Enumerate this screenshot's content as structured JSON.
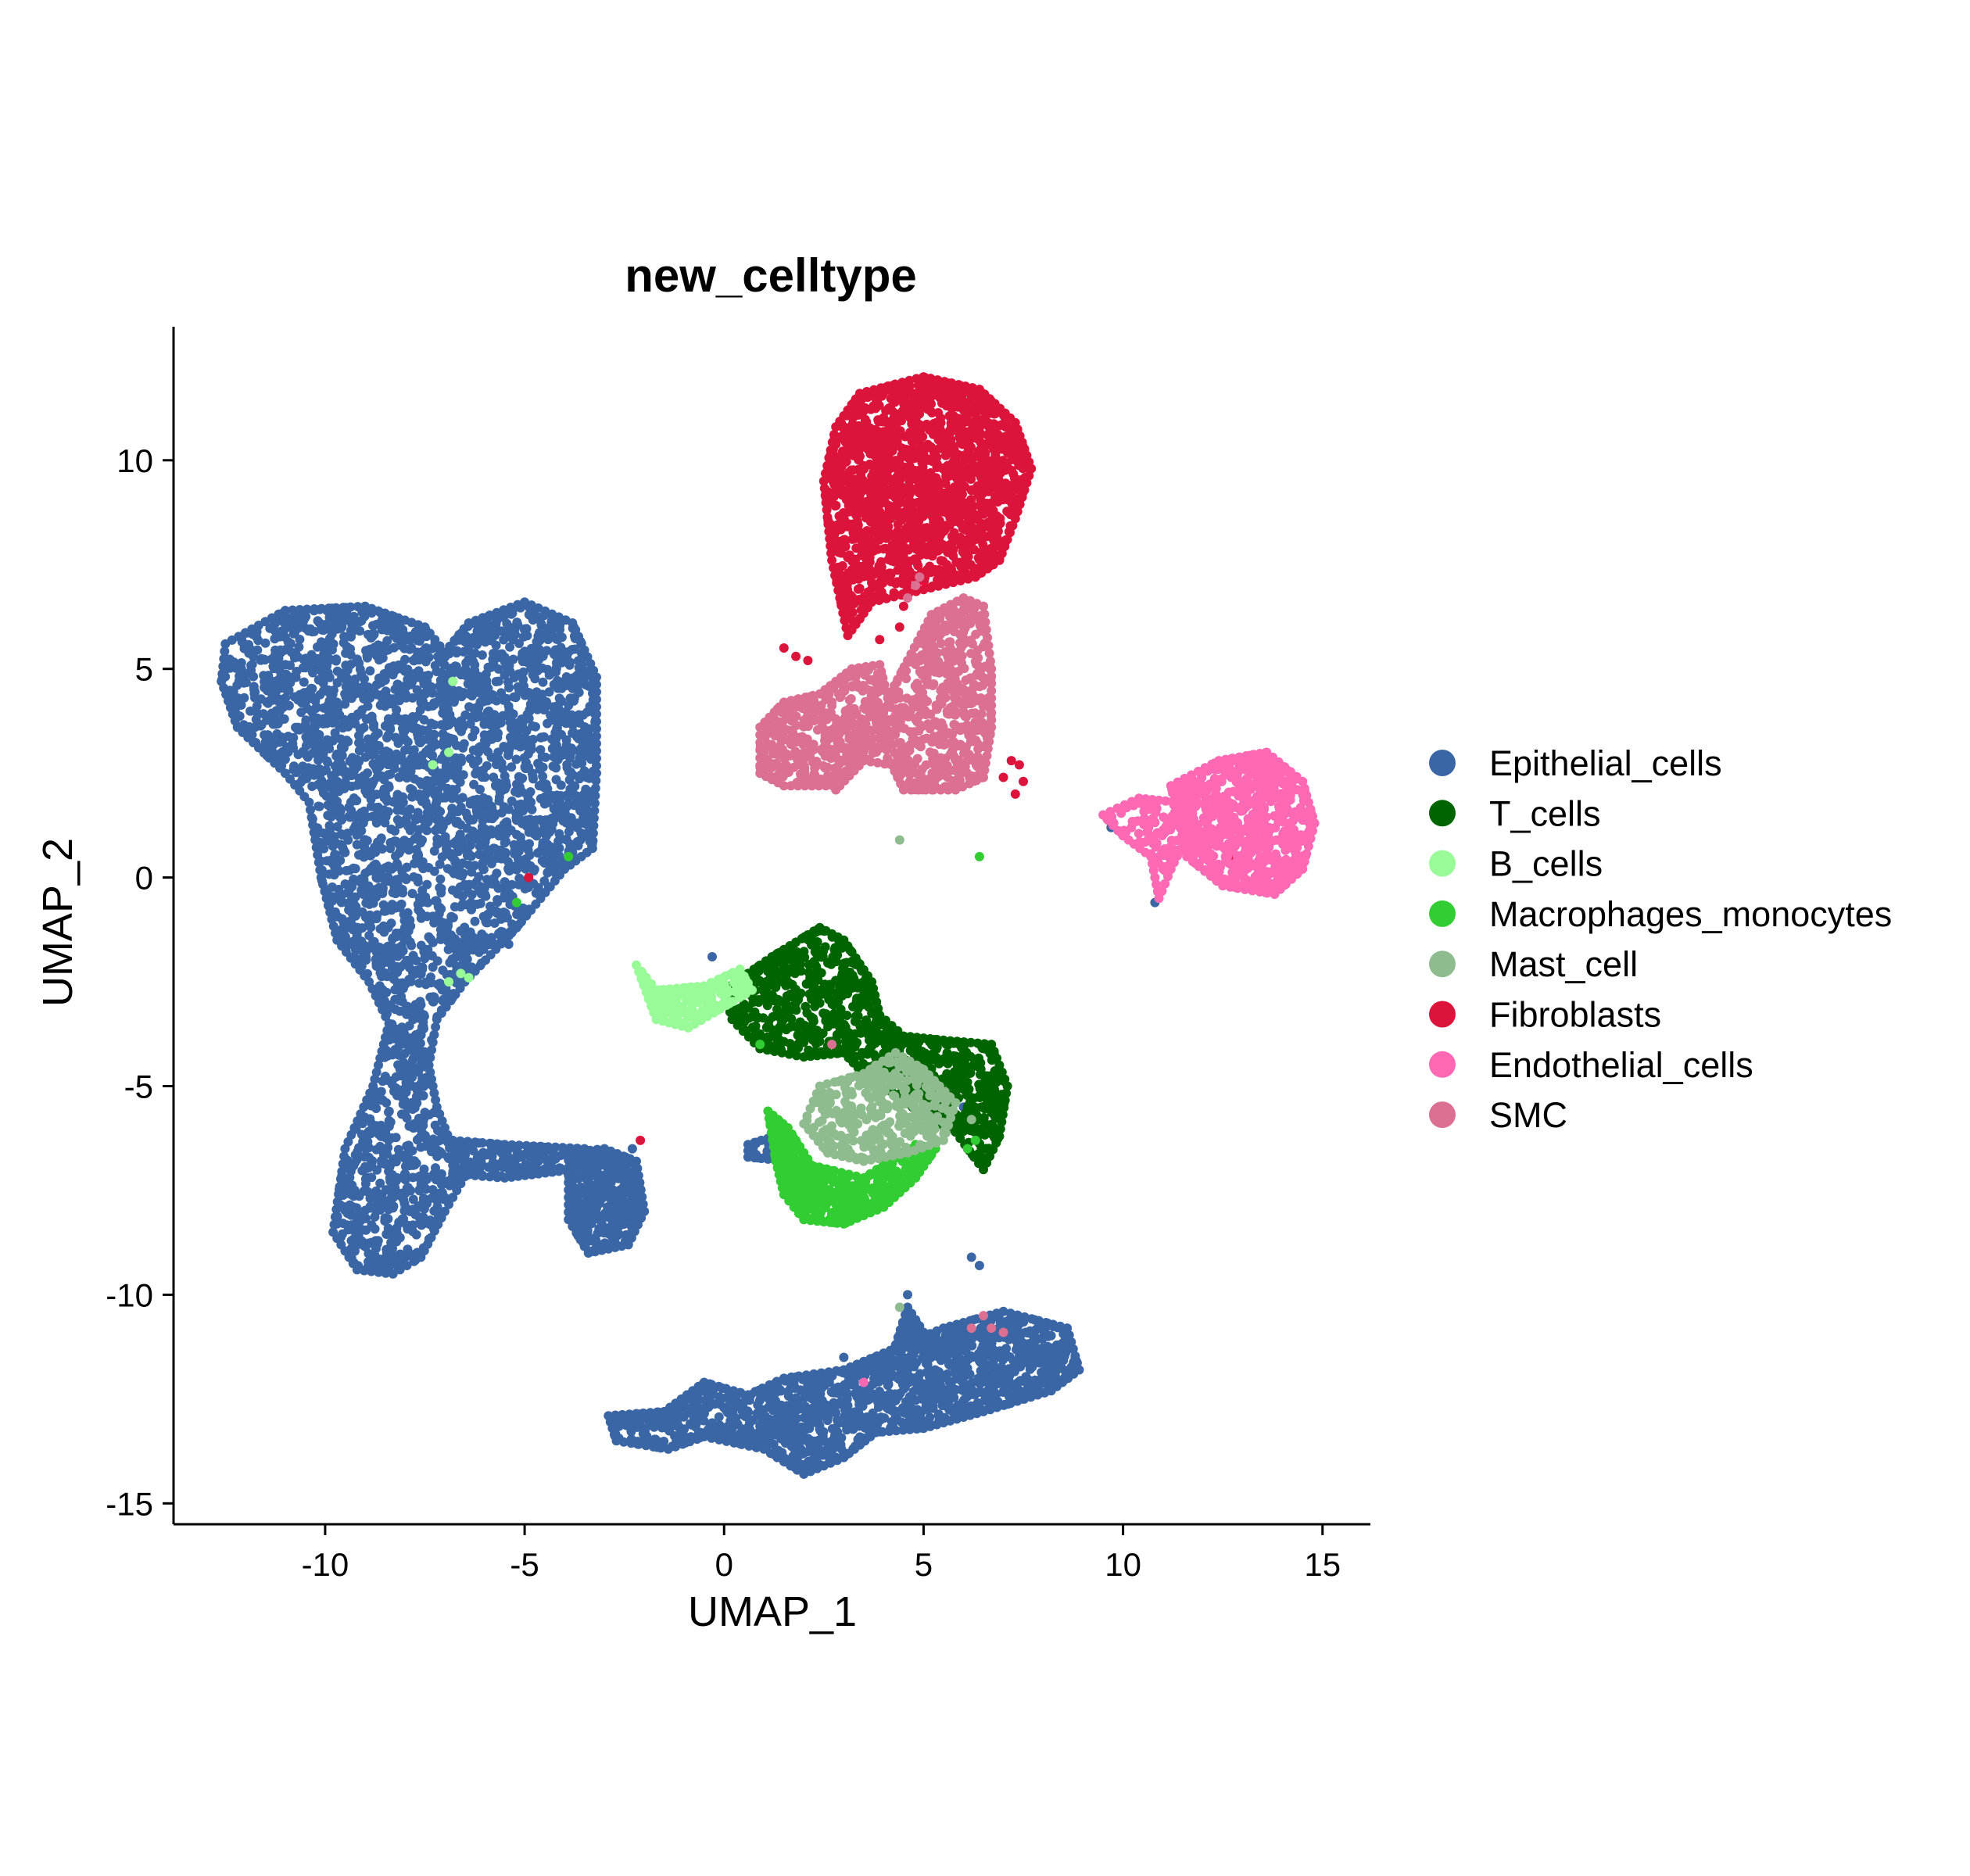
{
  "chart_data": {
    "type": "scatter",
    "title": "new_celltype",
    "xlabel": "UMAP_1",
    "ylabel": "UMAP_2",
    "xlim": [
      -13.8,
      16.2
    ],
    "ylim": [
      -15.5,
      13.2
    ],
    "xticks": [
      -10,
      -5,
      0,
      5,
      10,
      15
    ],
    "yticks": [
      -15,
      -10,
      -5,
      0,
      5,
      10
    ],
    "xtick_labels": [
      "-10",
      "-5",
      "0",
      "5",
      "10",
      "15"
    ],
    "ytick_labels": [
      "-15",
      "-10",
      "-5",
      "0",
      "5",
      "10"
    ],
    "grid": false,
    "legend_position": "right",
    "series": [
      {
        "name": "Epithelial_cells",
        "color": "#3A66A5",
        "regions": [
          {
            "poly": [
              [
                -12.5,
                5.6
              ],
              [
                -11,
                6.4
              ],
              [
                -9,
                6.5
              ],
              [
                -7.5,
                6.0
              ],
              [
                -7,
                5.4
              ],
              [
                -6.4,
                6.1
              ],
              [
                -5,
                6.6
              ],
              [
                -3.8,
                6.1
              ],
              [
                -3.2,
                4.8
              ],
              [
                -3.2,
                2.5
              ],
              [
                -3.3,
                0.7
              ],
              [
                -4,
                0.2
              ],
              [
                -5.2,
                -1.2
              ],
              [
                -6.5,
                -2.5
              ],
              [
                -7.2,
                -3.4
              ],
              [
                -7.4,
                -4.5
              ],
              [
                -7.2,
                -5.5
              ],
              [
                -6.8,
                -6.5
              ],
              [
                -6.4,
                -7.0
              ],
              [
                -7.0,
                -8.0
              ],
              [
                -7.6,
                -9.1
              ],
              [
                -8.3,
                -9.5
              ],
              [
                -9.2,
                -9.4
              ],
              [
                -9.8,
                -8.5
              ],
              [
                -9.5,
                -6.5
              ],
              [
                -8.8,
                -5.0
              ],
              [
                -8.4,
                -3.5
              ],
              [
                -8.9,
                -2.5
              ],
              [
                -9.7,
                -1.5
              ],
              [
                -10.1,
                0.0
              ],
              [
                -10.4,
                1.8
              ],
              [
                -11.0,
                2.5
              ],
              [
                -12.2,
                3.6
              ],
              [
                -12.6,
                4.7
              ]
            ],
            "n": 3200
          },
          {
            "poly": [
              [
                -6.8,
                -6.3
              ],
              [
                -5.5,
                -6.4
              ],
              [
                -3.5,
                -6.5
              ],
              [
                -3.8,
                -7.0
              ],
              [
                -5.5,
                -7.2
              ],
              [
                -6.8,
                -7.1
              ]
            ],
            "n": 150
          },
          {
            "poly": [
              [
                -3.9,
                -6.6
              ],
              [
                -3.0,
                -6.5
              ],
              [
                -2.2,
                -6.8
              ],
              [
                -2.0,
                -8.0
              ],
              [
                -2.4,
                -8.8
              ],
              [
                -3.4,
                -9.0
              ],
              [
                -3.9,
                -8.2
              ]
            ],
            "n": 350
          },
          {
            "poly": [
              [
                -1.5,
                -12.8
              ],
              [
                -0.5,
                -12.1
              ],
              [
                0.6,
                -12.4
              ],
              [
                1.5,
                -12.0
              ],
              [
                3.0,
                -11.8
              ],
              [
                4.5,
                -11.2
              ],
              [
                5.5,
                -10.8
              ],
              [
                7.0,
                -10.4
              ],
              [
                8.6,
                -10.8
              ],
              [
                8.9,
                -11.8
              ],
              [
                8.2,
                -12.3
              ],
              [
                6.5,
                -12.8
              ],
              [
                5.0,
                -13.2
              ],
              [
                3.8,
                -13.3
              ],
              [
                3.0,
                -13.9
              ],
              [
                2.0,
                -14.3
              ],
              [
                1.0,
                -13.7
              ],
              [
                -0.5,
                -13.4
              ],
              [
                -1.4,
                -13.7
              ],
              [
                -2.7,
                -13.5
              ],
              [
                -2.9,
                -12.9
              ]
            ],
            "n": 1400
          },
          {
            "poly": [
              [
                4.3,
                -11.2
              ],
              [
                4.6,
                -10.3
              ],
              [
                5.0,
                -10.9
              ],
              [
                5.3,
                -11.4
              ]
            ],
            "n": 50
          },
          {
            "poly": [
              [
                0.6,
                -6.4
              ],
              [
                1.6,
                -6.1
              ],
              [
                1.6,
                -6.8
              ],
              [
                0.6,
                -6.7
              ]
            ],
            "n": 25
          }
        ],
        "extras": [
          [
            -5.4,
            5.9
          ],
          [
            -6.8,
            4.7
          ],
          [
            -6.4,
            0.3
          ],
          [
            -5.4,
            -1.6
          ],
          [
            -2.3,
            -6.5
          ],
          [
            -0.3,
            -1.9
          ],
          [
            6.0,
            -5.5
          ],
          [
            3.0,
            -11.5
          ],
          [
            10.8,
            -0.6
          ],
          [
            9.7,
            1.2
          ],
          [
            7.8,
            -11.6
          ],
          [
            6.2,
            -9.1
          ],
          [
            6.4,
            -9.3
          ],
          [
            4.6,
            -10.0
          ]
        ]
      },
      {
        "name": "T_cells",
        "color": "#006400",
        "regions": [
          {
            "poly": [
              [
                0.0,
                -2.7
              ],
              [
                1.2,
                -1.9
              ],
              [
                2.4,
                -1.2
              ],
              [
                3.0,
                -1.5
              ],
              [
                3.7,
                -2.5
              ],
              [
                3.9,
                -3.3
              ],
              [
                4.5,
                -3.8
              ],
              [
                5.5,
                -3.9
              ],
              [
                6.7,
                -4.0
              ],
              [
                7.1,
                -5.0
              ],
              [
                6.9,
                -6.2
              ],
              [
                6.5,
                -7.0
              ],
              [
                5.8,
                -6.1
              ],
              [
                5.0,
                -5.7
              ],
              [
                4.3,
                -5.2
              ],
              [
                3.6,
                -4.8
              ],
              [
                3.0,
                -4.2
              ],
              [
                2.0,
                -4.3
              ],
              [
                0.9,
                -4.1
              ],
              [
                0.2,
                -3.4
              ]
            ],
            "n": 900
          }
        ],
        "extras": [
          [
            1.0,
            -3.9
          ],
          [
            1.7,
            -4.1
          ]
        ]
      },
      {
        "name": "B_cells",
        "color": "#98FB98",
        "regions": [
          {
            "poly": [
              [
                -2.2,
                -2.1
              ],
              [
                -1.7,
                -2.7
              ],
              [
                -0.5,
                -2.6
              ],
              [
                0.4,
                -2.2
              ],
              [
                0.7,
                -2.7
              ],
              [
                -0.9,
                -3.6
              ],
              [
                -1.7,
                -3.4
              ]
            ],
            "n": 180
          }
        ],
        "extras": [
          [
            -6.8,
            4.7
          ],
          [
            -6.9,
            3.0
          ],
          [
            -7.3,
            2.7
          ],
          [
            -6.6,
            -2.3
          ],
          [
            -6.4,
            -2.4
          ],
          [
            -6.9,
            -2.5
          ]
        ]
      },
      {
        "name": "Macrophages_monocytes",
        "color": "#32CD32",
        "regions": [
          {
            "poly": [
              [
                1.6,
                -6.0
              ],
              [
                2.2,
                -6.9
              ],
              [
                3.5,
                -7.2
              ],
              [
                4.8,
                -6.4
              ],
              [
                5.3,
                -6.5
              ],
              [
                4.8,
                -7.2
              ],
              [
                4.0,
                -7.9
              ],
              [
                3.0,
                -8.3
              ],
              [
                2.0,
                -8.2
              ],
              [
                1.5,
                -7.6
              ],
              [
                1.3,
                -6.8
              ],
              [
                1.1,
                -5.6
              ]
            ],
            "n": 480
          }
        ],
        "extras": [
          [
            6.4,
            0.5
          ],
          [
            0.9,
            -4.0
          ],
          [
            6.1,
            -6.5
          ],
          [
            6.3,
            -6.3
          ],
          [
            -3.9,
            0.5
          ],
          [
            -5.2,
            -0.6
          ]
        ]
      },
      {
        "name": "Mast_cell",
        "color": "#8FBC8F",
        "regions": [
          {
            "poly": [
              [
                2.4,
                -5.0
              ],
              [
                3.5,
                -4.7
              ],
              [
                4.3,
                -4.2
              ],
              [
                5.0,
                -4.6
              ],
              [
                5.8,
                -5.4
              ],
              [
                5.5,
                -6.3
              ],
              [
                4.6,
                -6.6
              ],
              [
                3.5,
                -6.8
              ],
              [
                2.6,
                -6.6
              ],
              [
                2.0,
                -5.9
              ]
            ],
            "n": 300
          }
        ],
        "extras": [
          [
            4.4,
            0.9
          ],
          [
            4.4,
            -10.3
          ],
          [
            3.8,
            -4.5
          ],
          [
            6.2,
            -5.8
          ]
        ]
      },
      {
        "name": "Fibroblasts",
        "color": "#DC143C",
        "regions": [
          {
            "poly": [
              [
                2.8,
                10.8
              ],
              [
                3.4,
                11.6
              ],
              [
                5.0,
                12.0
              ],
              [
                6.4,
                11.7
              ],
              [
                7.3,
                10.9
              ],
              [
                7.7,
                9.8
              ],
              [
                7.3,
                8.6
              ],
              [
                6.9,
                7.6
              ],
              [
                6.3,
                7.2
              ],
              [
                5.0,
                6.9
              ],
              [
                3.7,
                6.6
              ],
              [
                3.1,
                5.8
              ],
              [
                2.7,
                7.6
              ],
              [
                2.5,
                9.5
              ]
            ],
            "n": 1600
          }
        ],
        "extras": [
          [
            1.8,
            5.3
          ],
          [
            1.5,
            5.5
          ],
          [
            2.1,
            5.2
          ],
          [
            3.9,
            5.7
          ],
          [
            4.4,
            6.0
          ],
          [
            7.2,
            2.8
          ],
          [
            7.4,
            2.7
          ],
          [
            7.0,
            2.4
          ],
          [
            7.3,
            2.0
          ],
          [
            7.5,
            2.3
          ],
          [
            4.5,
            6.5
          ],
          [
            -4.9,
            0.0
          ],
          [
            -2.1,
            -6.3
          ],
          [
            12.7,
            0.5
          ]
        ]
      },
      {
        "name": "Endothelial_cells",
        "color": "#FF69B4",
        "regions": [
          {
            "poly": [
              [
                11.2,
                2.2
              ],
              [
                12.4,
                2.8
              ],
              [
                13.6,
                3.0
              ],
              [
                14.5,
                2.3
              ],
              [
                14.8,
                1.3
              ],
              [
                14.5,
                0.2
              ],
              [
                13.8,
                -0.4
              ],
              [
                12.5,
                -0.2
              ],
              [
                11.6,
                0.5
              ]
            ],
            "n": 700
          },
          {
            "poly": [
              [
                9.5,
                1.5
              ],
              [
                10.4,
                1.9
              ],
              [
                11.4,
                1.8
              ],
              [
                11.6,
                1.0
              ],
              [
                11.2,
                0.2
              ],
              [
                10.9,
                -0.5
              ],
              [
                10.7,
                0.5
              ],
              [
                10.0,
                1.0
              ]
            ],
            "n": 90
          }
        ],
        "extras": [
          [
            4.3,
            3.9
          ],
          [
            3.5,
            -12.1
          ],
          [
            9.6,
            1.4
          ]
        ]
      },
      {
        "name": "SMC",
        "color": "#DB7093",
        "regions": [
          {
            "poly": [
              [
                0.9,
                3.6
              ],
              [
                1.5,
                4.2
              ],
              [
                2.4,
                4.4
              ],
              [
                3.2,
                5.0
              ],
              [
                3.9,
                5.1
              ],
              [
                4.1,
                4.3
              ],
              [
                4.6,
                5.2
              ],
              [
                5.2,
                6.3
              ],
              [
                6.0,
                6.7
              ],
              [
                6.5,
                6.5
              ],
              [
                6.7,
                5.0
              ],
              [
                6.7,
                3.6
              ],
              [
                6.5,
                2.4
              ],
              [
                5.8,
                2.1
              ],
              [
                4.5,
                2.1
              ],
              [
                4.2,
                2.7
              ],
              [
                3.5,
                2.8
              ],
              [
                2.9,
                2.2
              ],
              [
                1.5,
                2.2
              ],
              [
                0.9,
                2.5
              ]
            ],
            "n": 900
          }
        ],
        "extras": [
          [
            4.8,
            7.0
          ],
          [
            4.9,
            7.2
          ],
          [
            4.6,
            6.7
          ],
          [
            2.8,
            2.1
          ],
          [
            6.5,
            -10.5
          ],
          [
            6.2,
            -10.8
          ],
          [
            6.7,
            -10.8
          ],
          [
            7.0,
            -10.9
          ],
          [
            2.7,
            -4.0
          ]
        ]
      }
    ]
  }
}
